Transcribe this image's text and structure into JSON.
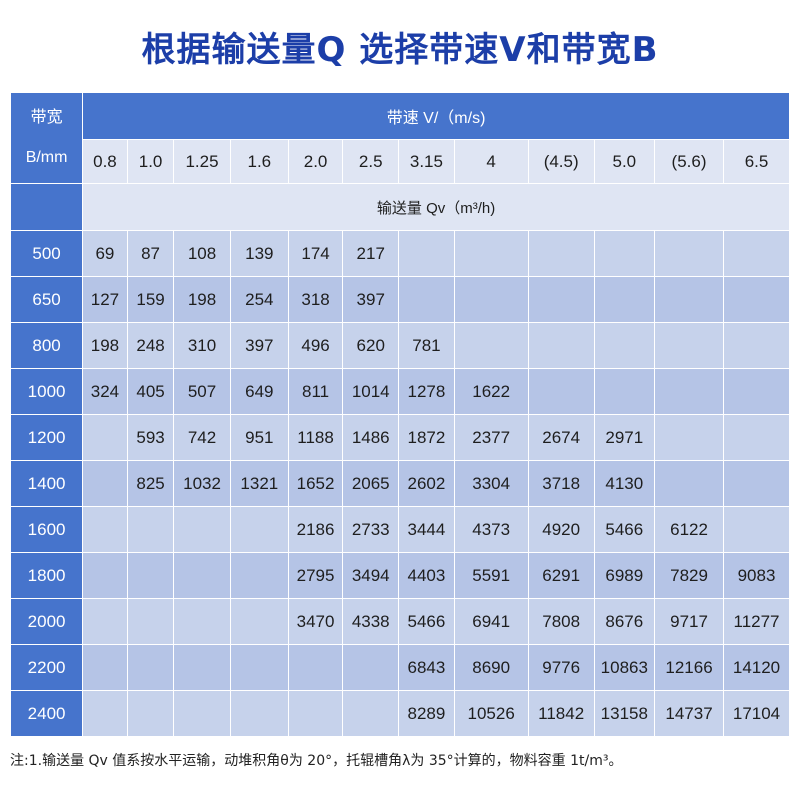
{
  "title": "根据输送量Q 选择带速V和带宽B",
  "table": {
    "width_header_line1": "带宽",
    "width_header_line2": "B/mm",
    "speed_header": "带速 V/（m/s)",
    "speeds": [
      "0.8",
      "1.0",
      "1.25",
      "1.6",
      "2.0",
      "2.5",
      "3.15",
      "4",
      "(4.5)",
      "5.0",
      "(5.6)",
      "6.5"
    ],
    "flow_header": "输送量 Qv（m³/h)",
    "rows": [
      {
        "width": "500",
        "values": [
          "69",
          "87",
          "108",
          "139",
          "174",
          "217",
          "",
          "",
          "",
          "",
          "",
          ""
        ]
      },
      {
        "width": "650",
        "values": [
          "127",
          "159",
          "198",
          "254",
          "318",
          "397",
          "",
          "",
          "",
          "",
          "",
          ""
        ]
      },
      {
        "width": "800",
        "values": [
          "198",
          "248",
          "310",
          "397",
          "496",
          "620",
          "781",
          "",
          "",
          "",
          "",
          ""
        ]
      },
      {
        "width": "1000",
        "values": [
          "324",
          "405",
          "507",
          "649",
          "811",
          "1014",
          "1278",
          "1622",
          "",
          "",
          "",
          ""
        ]
      },
      {
        "width": "1200",
        "values": [
          "",
          "593",
          "742",
          "951",
          "1188",
          "1486",
          "1872",
          "2377",
          "2674",
          "2971",
          "",
          ""
        ]
      },
      {
        "width": "1400",
        "values": [
          "",
          "825",
          "1032",
          "1321",
          "1652",
          "2065",
          "2602",
          "3304",
          "3718",
          "4130",
          "",
          ""
        ]
      },
      {
        "width": "1600",
        "values": [
          "",
          "",
          "",
          "",
          "2186",
          "2733",
          "3444",
          "4373",
          "4920",
          "5466",
          "6122",
          ""
        ]
      },
      {
        "width": "1800",
        "values": [
          "",
          "",
          "",
          "",
          "2795",
          "3494",
          "4403",
          "5591",
          "6291",
          "6989",
          "7829",
          "9083"
        ]
      },
      {
        "width": "2000",
        "values": [
          "",
          "",
          "",
          "",
          "3470",
          "4338",
          "5466",
          "6941",
          "7808",
          "8676",
          "9717",
          "11277"
        ]
      },
      {
        "width": "2200",
        "values": [
          "",
          "",
          "",
          "",
          "",
          "",
          "6843",
          "8690",
          "9776",
          "10863",
          "12166",
          "14120"
        ]
      },
      {
        "width": "2400",
        "values": [
          "",
          "",
          "",
          "",
          "",
          "",
          "8289",
          "10526",
          "11842",
          "13158",
          "14737",
          "17104"
        ]
      }
    ]
  },
  "note": "注:1.输送量 Qv 值系按水平运输，动堆积角θ为 20°，托辊槽角λ为 35°计算的，物料容重 1t/m³。",
  "colors": {
    "title": "#1c3ea8",
    "header_bg": "#4674cc",
    "light_bg": "#dfe5f3",
    "cell_light": "#c6d2eb",
    "cell_dark": "#b5c4e6"
  }
}
